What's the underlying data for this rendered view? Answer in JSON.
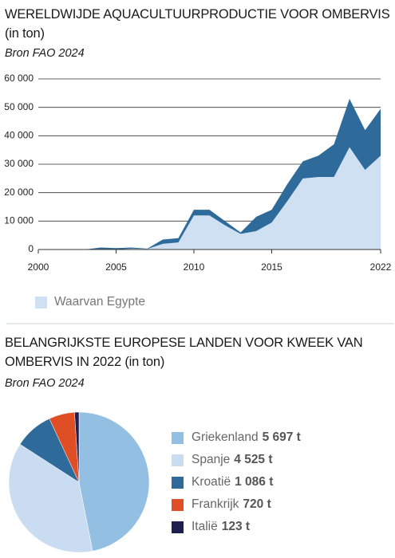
{
  "chart_data": [
    {
      "type": "area",
      "title": "WERELDWIJDE AQUACULTUURPRODUCTIE VOOR OMBERVIS (in ton)",
      "subtitle": "Bron FAO 2024",
      "x": [
        2000,
        2001,
        2002,
        2003,
        2004,
        2005,
        2006,
        2007,
        2008,
        2009,
        2010,
        2011,
        2012,
        2013,
        2014,
        2015,
        2016,
        2017,
        2018,
        2019,
        2020,
        2021,
        2022
      ],
      "series": [
        {
          "color": "#2f6b9a",
          "values": [
            0,
            0,
            0,
            0,
            700,
            500,
            700,
            300,
            3500,
            4000,
            14000,
            14000,
            10000,
            6000,
            11500,
            14000,
            23000,
            31000,
            33000,
            37000,
            53000,
            42000,
            49500
          ]
        },
        {
          "name": "Waarvan Egypte",
          "color": "#cfe0f3",
          "values": [
            0,
            0,
            0,
            0,
            0,
            0,
            300,
            200,
            2000,
            2500,
            12000,
            12000,
            8500,
            5500,
            6500,
            9500,
            17000,
            25000,
            25500,
            25500,
            36000,
            28000,
            33000
          ]
        }
      ],
      "xlim": [
        2000,
        2022
      ],
      "xticks": [
        2000,
        2005,
        2010,
        2015,
        2022
      ],
      "ylim": [
        0,
        60000
      ],
      "yticks": [
        0,
        {
          "value": 10000,
          "label": "10 000"
        },
        {
          "value": 20000,
          "label": "20 000"
        },
        {
          "value": 30000,
          "label": "30 000"
        },
        {
          "value": 40000,
          "label": "40 000"
        },
        {
          "value": 50000,
          "label": "50 000"
        },
        {
          "value": 60000,
          "label": "60 000"
        }
      ],
      "grid": true,
      "legend": "bottom-left"
    },
    {
      "type": "pie",
      "title": "BELANGRIJKSTE EUROPESE LANDEN VOOR KWEEK VAN OMBERVIS IN 2022 (in ton)",
      "subtitle": "Bron FAO 2024",
      "categories": [
        "Griekenland",
        "Spanje",
        "Kroatië",
        "Frankrijk",
        "Italië"
      ],
      "values": [
        5697,
        4525,
        1086,
        720,
        123
      ],
      "value_labels": [
        "5 697 t",
        "4 525 t",
        "1 086 t",
        "720 t",
        "123 t"
      ],
      "colors": [
        "#93bfe3",
        "#cadcf1",
        "#2f6b9a",
        "#e04e25",
        "#1f1f4f"
      ],
      "legend": "right"
    }
  ]
}
